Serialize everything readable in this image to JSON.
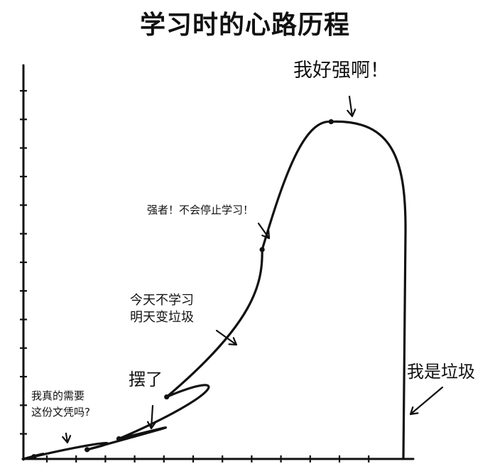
{
  "chart_data": {
    "type": "line",
    "title": "学习时的心路历程",
    "xlabel": "",
    "ylabel": "",
    "grid": false,
    "points": [
      {
        "x": 2,
        "y": 3
      },
      {
        "x": 12,
        "y": 12
      },
      {
        "x": 18,
        "y": 26
      },
      {
        "x": 27,
        "y": 80
      },
      {
        "x": 45,
        "y": 270
      },
      {
        "x": 58,
        "y": 435
      }
    ],
    "annotations": [
      {
        "lines": [
          "我真的需要",
          "这份文凭吗?"
        ]
      },
      {
        "lines": [
          "摆了"
        ]
      },
      {
        "lines": [
          "今天不学习",
          "明天变垃圾"
        ]
      },
      {
        "lines": [
          "强者！不会停止学习！"
        ]
      },
      {
        "lines": [
          "我好强啊！"
        ]
      },
      {
        "lines": [
          "我是垃圾"
        ]
      }
    ]
  }
}
